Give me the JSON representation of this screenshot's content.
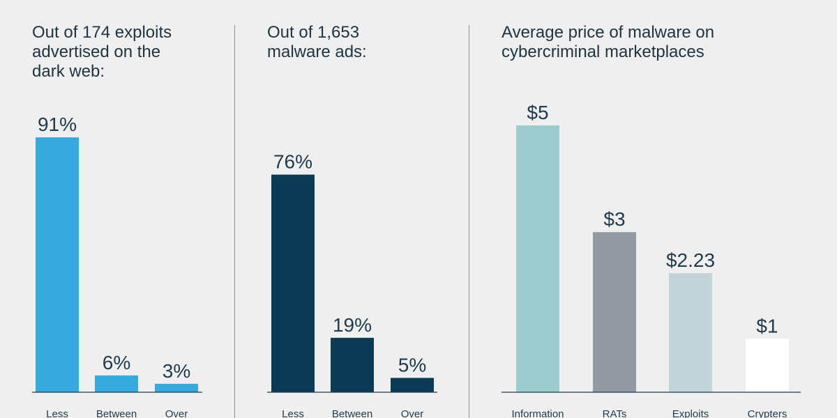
{
  "chart_data": [
    {
      "type": "bar",
      "title": "Out of 174 exploits\nadvertised on the\ndark web:",
      "categories": [
        "Less",
        "Between",
        "Over"
      ],
      "values": [
        91,
        6,
        3
      ],
      "value_labels": [
        "91%",
        "6%",
        "3%"
      ],
      "ylim": [
        0,
        100
      ],
      "colors": [
        "#36a9df",
        "#36a9df",
        "#36a9df"
      ]
    },
    {
      "type": "bar",
      "title": "Out of 1,653\nmalware ads:",
      "categories": [
        "Less",
        "Between",
        "Over"
      ],
      "values": [
        76,
        19,
        5
      ],
      "value_labels": [
        "76%",
        "19%",
        "5%"
      ],
      "ylim": [
        0,
        100
      ],
      "colors": [
        "#0c3b55",
        "#0c3b55",
        "#0c3b55"
      ]
    },
    {
      "type": "bar",
      "title": "Average price of malware on\ncybercriminal marketplaces",
      "categories": [
        "Information",
        "RATs",
        "Exploits",
        "Crypters"
      ],
      "values": [
        5,
        3,
        2.23,
        1
      ],
      "value_labels": [
        "$5",
        "$3",
        "$2.23",
        "$1"
      ],
      "ylim": [
        0,
        5
      ],
      "colors": [
        "#9ccccd",
        "#939aa4",
        "#c2d3da",
        "#ffffff"
      ]
    }
  ]
}
